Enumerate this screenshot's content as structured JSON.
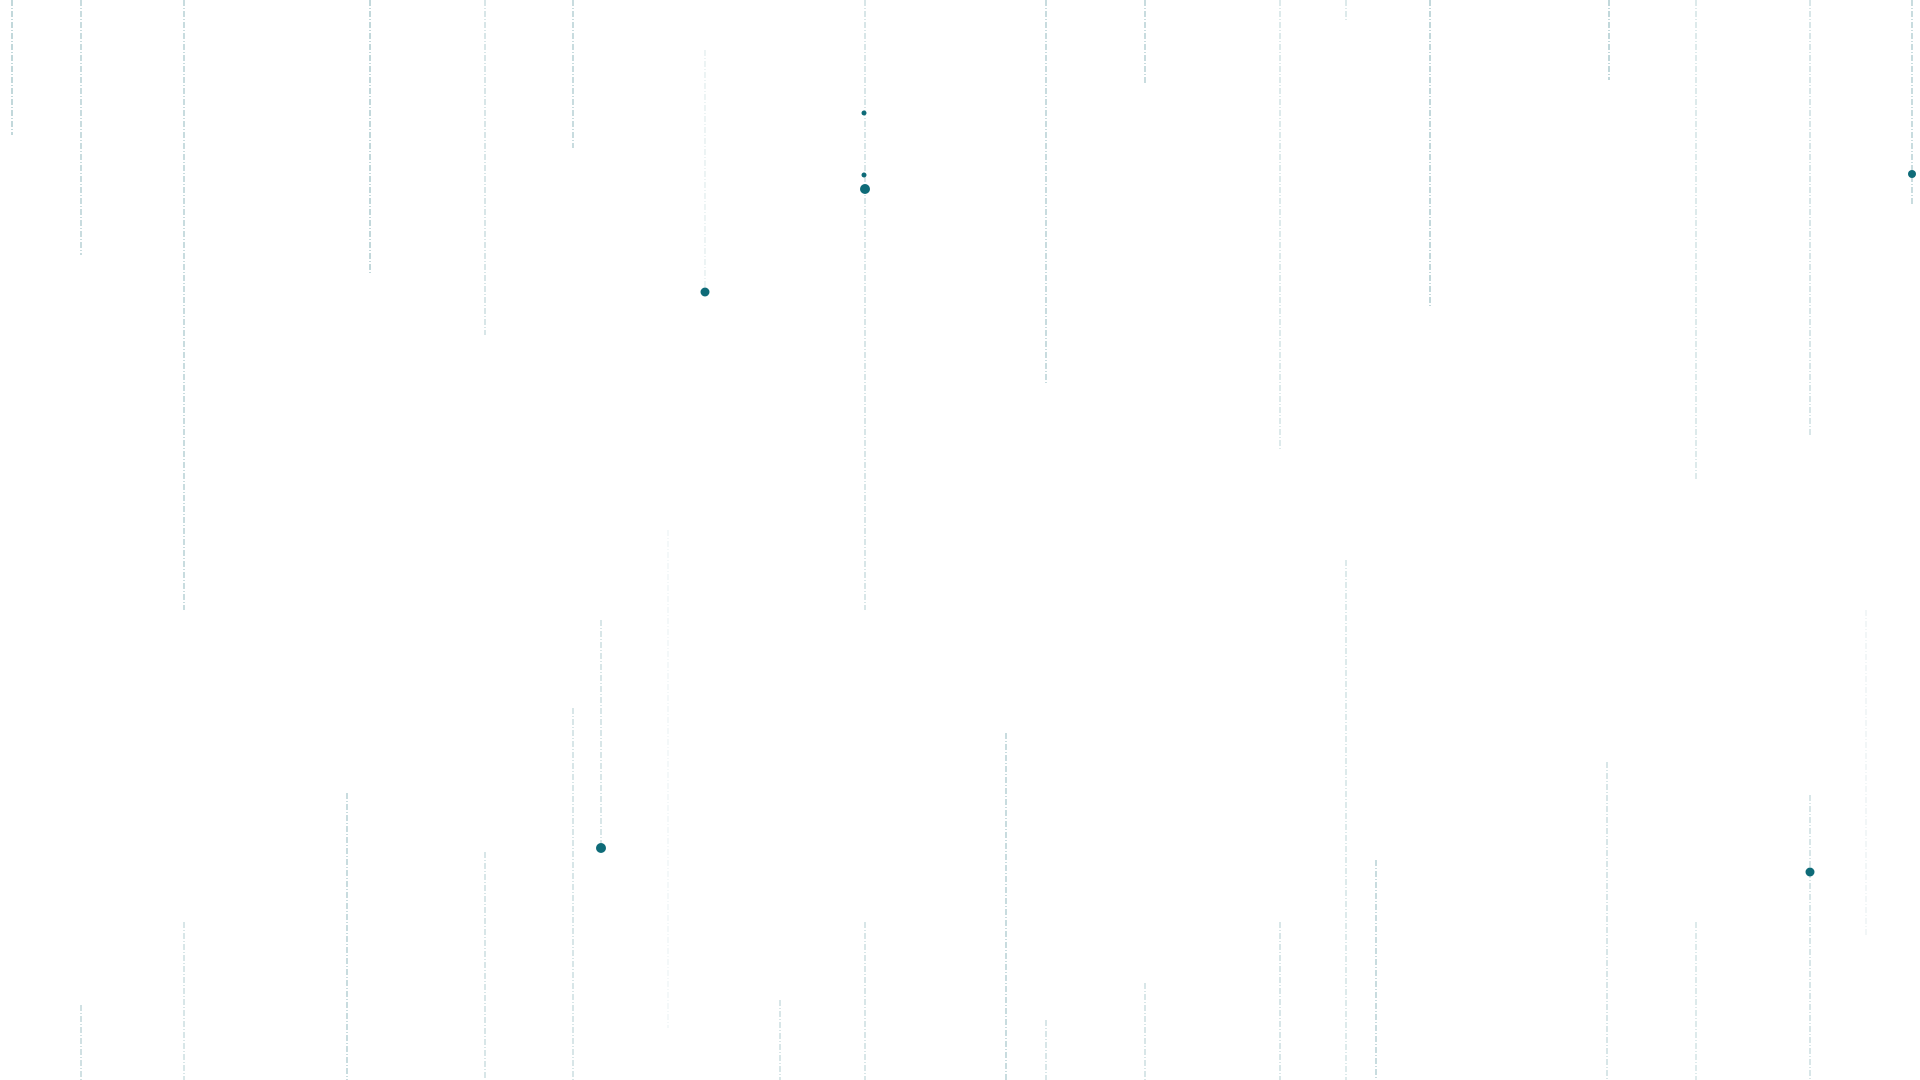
{
  "colors": {
    "background": "#ffffff",
    "mark": "#0e6b78",
    "line": "#1f6f7a"
  },
  "description": {
    "icon": "none"
  }
}
